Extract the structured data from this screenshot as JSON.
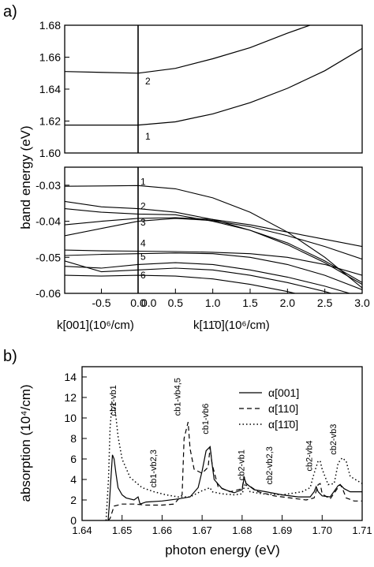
{
  "figure": {
    "panel_a_label": "a)",
    "panel_b_label": "b)"
  },
  "chart_data": [
    {
      "type": "line",
      "panel": "a-top",
      "ylabel": "band energy (eV)",
      "ylim": [
        1.6,
        1.68
      ],
      "yticks": [
        "1.68",
        "1.66",
        "1.64",
        "1.62",
        "1.60"
      ],
      "left_xlim": [
        -1.0,
        0.0
      ],
      "right_xlim": [
        0.0,
        3.0
      ],
      "band_labels": [
        "1",
        "2"
      ],
      "series": [
        {
          "name": "1",
          "x": [
            -1.0,
            0.0,
            0.5,
            1.0,
            1.5,
            2.0,
            2.5,
            3.0
          ],
          "y": [
            1.6175,
            1.6175,
            1.6195,
            1.6245,
            1.6315,
            1.6405,
            1.6515,
            1.6655
          ]
        },
        {
          "name": "2",
          "x": [
            -1.0,
            0.0,
            0.5,
            1.0,
            1.5,
            2.0,
            2.3
          ],
          "y": [
            1.651,
            1.65,
            1.653,
            1.659,
            1.666,
            1.675,
            1.68
          ]
        }
      ]
    },
    {
      "type": "line",
      "panel": "a-bottom",
      "ylim": [
        -0.06,
        -0.025
      ],
      "yticks": [
        "-0.03",
        "-0.04",
        "-0.05",
        "-0.06"
      ],
      "left_xlim": [
        -1.0,
        0.0
      ],
      "right_xlim": [
        0.0,
        3.0
      ],
      "left_xticks": [
        "-0.5",
        "0.0"
      ],
      "right_xticks": [
        "0.0",
        "0.5",
        "1.0",
        "1.5",
        "2.0",
        "2.5",
        "3.0"
      ],
      "left_xlabel": "k[001](10⁶/cm)",
      "right_xlabel": "k[11̄0](10⁶/cm)",
      "band_labels": [
        "1",
        "2",
        "3",
        "4",
        "5",
        "6"
      ],
      "series": [
        {
          "name": "1",
          "x": [
            -1.0,
            -0.5,
            0.0,
            0.5,
            1.0,
            1.5,
            2.0,
            2.5,
            3.0
          ],
          "y": [
            -0.0303,
            -0.0302,
            -0.0301,
            -0.031,
            -0.0335,
            -0.0375,
            -0.043,
            -0.05,
            -0.0585
          ]
        },
        {
          "x": [
            -1.0,
            -0.5,
            0.0,
            0.5,
            1.0,
            1.5,
            2.0,
            2.5,
            3.0
          ],
          "y": [
            -0.0345,
            -0.036,
            -0.0365,
            -0.0375,
            -0.0395,
            -0.0425,
            -0.0465,
            -0.0515,
            -0.0575
          ]
        },
        {
          "x": [
            -1.0,
            -0.5,
            0.0,
            0.5,
            1.0,
            1.5,
            2.0,
            2.5,
            3.0
          ],
          "y": [
            -0.0365,
            -0.0375,
            -0.038,
            -0.0382,
            -0.04,
            -0.0425,
            -0.046,
            -0.051,
            -0.057
          ]
        },
        {
          "x": [
            -1.0,
            -0.5,
            0.0,
            0.5,
            1.0,
            1.5,
            2.0,
            2.5,
            3.0
          ],
          "y": [
            -0.041,
            -0.04,
            -0.0392,
            -0.039,
            -0.0395,
            -0.041,
            -0.043,
            -0.045,
            -0.047
          ]
        },
        {
          "x": [
            -1.0,
            -0.5,
            0.0,
            0.5,
            1.0,
            1.5,
            2.0,
            2.5,
            3.0
          ],
          "y": [
            -0.044,
            -0.042,
            -0.04,
            -0.0392,
            -0.0398,
            -0.0415,
            -0.044,
            -0.047,
            -0.0505
          ]
        },
        {
          "x": [
            -1.0,
            -0.5,
            0.0,
            0.5,
            1.0,
            1.5,
            2.0,
            2.5,
            3.0
          ],
          "y": [
            -0.048,
            -0.0482,
            -0.0483,
            -0.0484,
            -0.0486,
            -0.049,
            -0.05,
            -0.052,
            -0.055
          ]
        },
        {
          "x": [
            -1.0,
            -0.5,
            0.0,
            0.5,
            1.0,
            1.5,
            2.0,
            2.5,
            3.0
          ],
          "y": [
            -0.0495,
            -0.0492,
            -0.049,
            -0.0488,
            -0.049,
            -0.05,
            -0.052,
            -0.055,
            -0.059
          ]
        },
        {
          "x": [
            -1.0,
            -0.5,
            0.0,
            0.5,
            1.0,
            1.5,
            2.0,
            2.5,
            3.0
          ],
          "y": [
            -0.0525,
            -0.053,
            -0.052,
            -0.0515,
            -0.052,
            -0.0535,
            -0.0555,
            -0.058,
            -0.061
          ]
        },
        {
          "x": [
            -1.0,
            -0.5,
            0.0,
            0.5,
            1.0,
            1.5,
            2.0,
            2.5,
            3.0
          ],
          "y": [
            -0.051,
            -0.054,
            -0.0535,
            -0.053,
            -0.0535,
            -0.055,
            -0.057,
            -0.0595,
            -0.0625
          ]
        },
        {
          "x": [
            -1.0,
            -0.5,
            0.0,
            0.5,
            1.0,
            1.5,
            2.0,
            2.5,
            3.0
          ],
          "y": [
            -0.055,
            -0.0552,
            -0.055,
            -0.0552,
            -0.056,
            -0.0575,
            -0.0595,
            -0.062,
            -0.065
          ]
        }
      ]
    },
    {
      "type": "line",
      "panel": "b",
      "xlabel": "photon energy (eV)",
      "ylabel": "absorption (10⁴/cm)",
      "xlim": [
        1.64,
        1.71
      ],
      "ylim": [
        0,
        15
      ],
      "xticks": [
        "1.64",
        "1.65",
        "1.66",
        "1.67",
        "1.68",
        "1.69",
        "1.70",
        "1.71"
      ],
      "yticks": [
        "0",
        "2",
        "4",
        "6",
        "8",
        "10",
        "12",
        "14"
      ],
      "legend_position": "top-right",
      "legend": [
        "α[001]",
        "α[110]",
        "α[11̄0]"
      ],
      "annotations": [
        {
          "text": "cb1-vb1",
          "x": 1.6485,
          "y": 10.2
        },
        {
          "text": "cb1-vb2,3",
          "x": 1.6585,
          "y": 3.2
        },
        {
          "text": "cb1-vb4,5",
          "x": 1.6645,
          "y": 10.2
        },
        {
          "text": "cb1-vb6",
          "x": 1.6715,
          "y": 8.4
        },
        {
          "text": "cb2-vb1",
          "x": 1.6805,
          "y": 3.9
        },
        {
          "text": "cb2-vb2,3",
          "x": 1.6875,
          "y": 3.5
        },
        {
          "text": "cb2-vb4",
          "x": 1.6975,
          "y": 4.8
        },
        {
          "text": "cb2-vb3",
          "x": 1.7035,
          "y": 6.4
        }
      ],
      "series": [
        {
          "name": "α[001]",
          "x": [
            1.6465,
            1.6468,
            1.6472,
            1.6476,
            1.648,
            1.6485,
            1.649,
            1.65,
            1.651,
            1.653,
            1.654,
            1.6545,
            1.656,
            1.66,
            1.664,
            1.667,
            1.669,
            1.67,
            1.671,
            1.672,
            1.6725,
            1.673,
            1.675,
            1.678,
            1.68,
            1.6805,
            1.681,
            1.683,
            1.686,
            1.69,
            1.694,
            1.697,
            1.698,
            1.6985,
            1.699,
            1.7,
            1.702,
            1.704,
            1.7045,
            1.7055,
            1.707,
            1.71
          ],
          "y": [
            0.0,
            1.5,
            4.0,
            6.4,
            6.0,
            4.5,
            3.2,
            2.5,
            2.2,
            2.0,
            2.3,
            1.6,
            1.8,
            1.9,
            2.1,
            2.3,
            3.2,
            4.8,
            6.8,
            7.2,
            5.5,
            4.0,
            3.1,
            2.7,
            3.0,
            4.2,
            3.6,
            3.0,
            2.8,
            2.5,
            2.3,
            2.3,
            2.8,
            3.3,
            2.8,
            2.4,
            2.3,
            3.4,
            3.5,
            3.1,
            2.8,
            2.8
          ]
        },
        {
          "name": "α[110]",
          "x": [
            1.6465,
            1.647,
            1.648,
            1.65,
            1.653,
            1.656,
            1.66,
            1.663,
            1.665,
            1.6655,
            1.6665,
            1.667,
            1.668,
            1.67,
            1.6715,
            1.672,
            1.6725,
            1.674,
            1.677,
            1.68,
            1.6805,
            1.681,
            1.684,
            1.688,
            1.692,
            1.696,
            1.698,
            1.699,
            1.6995,
            1.7,
            1.702,
            1.7045,
            1.705,
            1.706,
            1.708,
            1.71
          ],
          "y": [
            0.0,
            0.2,
            1.4,
            1.6,
            1.6,
            1.5,
            1.5,
            1.6,
            2.5,
            8.0,
            9.6,
            7.0,
            5.0,
            4.6,
            5.2,
            7.2,
            5.5,
            3.3,
            2.8,
            3.1,
            4.3,
            3.6,
            2.8,
            2.4,
            2.2,
            2.0,
            2.2,
            3.5,
            3.6,
            2.6,
            2.1,
            3.5,
            3.2,
            2.2,
            1.9,
            1.9
          ]
        },
        {
          "name": "α[11̄0]",
          "x": [
            1.646,
            1.6466,
            1.647,
            1.6475,
            1.648,
            1.6485,
            1.649,
            1.65,
            1.652,
            1.655,
            1.658,
            1.661,
            1.664,
            1.667,
            1.67,
            1.672,
            1.6725,
            1.675,
            1.678,
            1.68,
            1.6808,
            1.682,
            1.685,
            1.69,
            1.695,
            1.697,
            1.698,
            1.699,
            1.6995,
            1.7,
            1.7015,
            1.703,
            1.704,
            1.705,
            1.706,
            1.707,
            1.71
          ],
          "y": [
            0.0,
            4.0,
            9.0,
            11.5,
            11.2,
            10.0,
            8.2,
            6.0,
            4.2,
            3.2,
            2.8,
            2.5,
            2.3,
            2.3,
            2.9,
            3.2,
            2.8,
            2.6,
            2.5,
            2.6,
            3.6,
            2.8,
            2.6,
            2.5,
            2.8,
            3.2,
            4.6,
            5.8,
            5.8,
            5.0,
            3.5,
            3.6,
            5.6,
            6.1,
            5.8,
            4.3,
            3.6
          ]
        }
      ]
    }
  ]
}
